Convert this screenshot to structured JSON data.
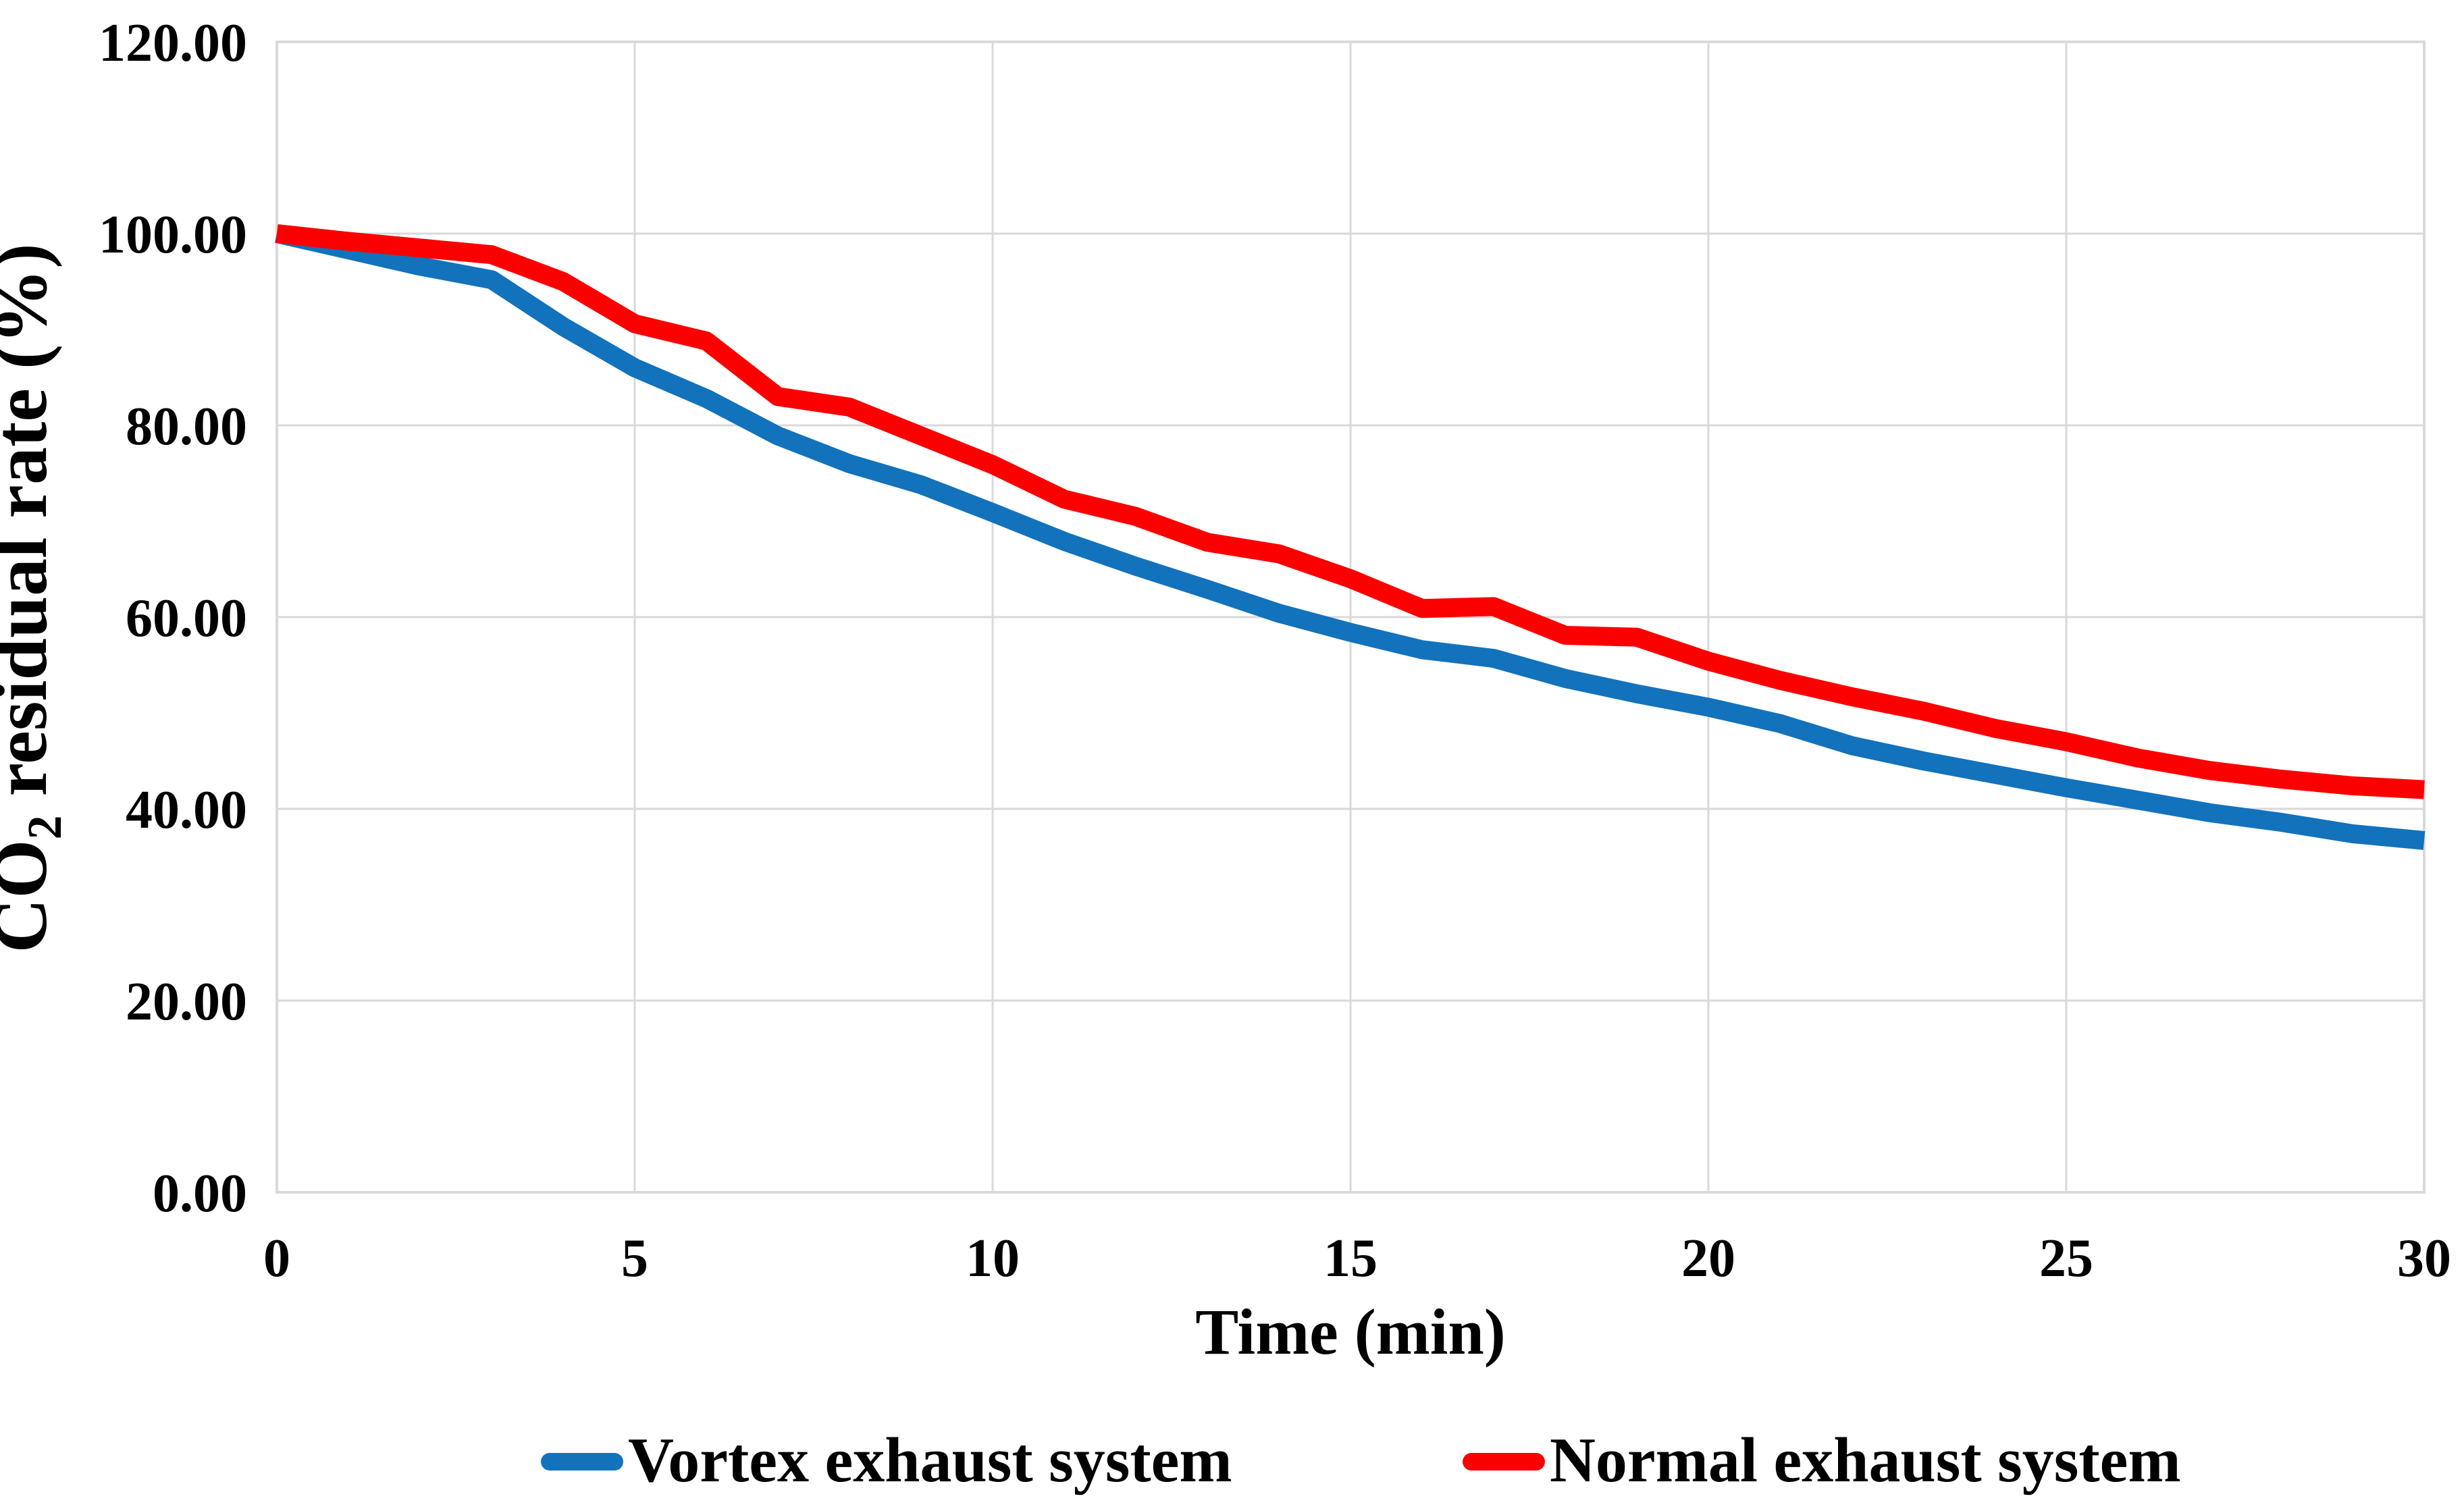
{
  "chart_data": {
    "type": "line",
    "title": "",
    "xlabel": "Time (min)",
    "ylabel": {
      "pre": "CO",
      "sub": "2",
      "post": " residual rate (%)"
    },
    "xlim": [
      0,
      30
    ],
    "ylim": [
      0,
      120
    ],
    "grid": true,
    "legend_position": "bottom",
    "x_ticks": [
      "0",
      "5",
      "10",
      "15",
      "20",
      "25",
      "30"
    ],
    "y_ticks": [
      "120.00",
      "100.00",
      "80.00",
      "60.00",
      "40.00",
      "20.00",
      "0.00"
    ],
    "x": [
      0,
      1,
      2,
      3,
      4,
      5,
      6,
      7,
      8,
      9,
      10,
      11,
      12,
      13,
      14,
      15,
      16,
      17,
      18,
      19,
      20,
      21,
      22,
      23,
      24,
      25,
      26,
      27,
      28,
      29,
      30
    ],
    "series": [
      {
        "name": "Vortex exhaust system",
        "color": "#1272BC",
        "values": [
          100.0,
          98.3,
          96.6,
          95.2,
          90.3,
          86.0,
          82.8,
          78.9,
          76.0,
          73.8,
          70.9,
          67.9,
          65.3,
          62.9,
          60.4,
          58.4,
          56.6,
          55.7,
          53.6,
          52.0,
          50.6,
          48.9,
          46.6,
          45.0,
          43.6,
          42.2,
          40.9,
          39.6,
          38.6,
          37.4,
          36.7
        ]
      },
      {
        "name": "Normal exhaust system",
        "color": "#FC0000",
        "values": [
          100.0,
          99.2,
          98.5,
          97.8,
          95.0,
          90.6,
          88.8,
          83.0,
          81.9,
          78.9,
          75.9,
          72.3,
          70.5,
          67.8,
          66.6,
          64.0,
          60.9,
          61.1,
          58.1,
          57.9,
          55.4,
          53.4,
          51.7,
          50.2,
          48.4,
          47.0,
          45.3,
          44.0,
          43.1,
          42.4,
          42.0
        ]
      }
    ]
  },
  "styles": {
    "grid_color": "#D9D9D9",
    "background": "#FFFFFF",
    "text_color": "#000000"
  }
}
